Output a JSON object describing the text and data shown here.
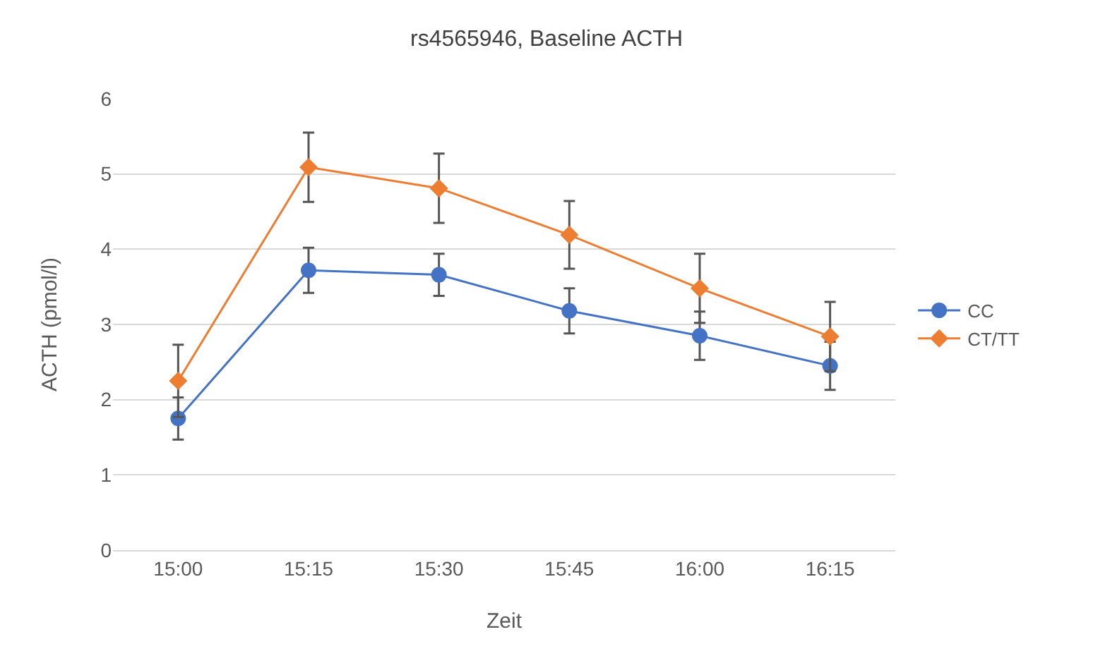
{
  "chart_data": {
    "type": "line",
    "title": "rs4565946, Baseline ACTH",
    "xlabel": "Zeit",
    "ylabel": "ACTH (pmol/l)",
    "categories": [
      "15:00",
      "15:15",
      "15:30",
      "15:45",
      "16:00",
      "16:15"
    ],
    "series": [
      {
        "name": "CC",
        "color": "#4472c4",
        "marker": "circle",
        "values": [
          1.75,
          3.72,
          3.66,
          3.18,
          2.85,
          2.45
        ],
        "errors": [
          0.28,
          0.3,
          0.28,
          0.3,
          0.32,
          0.32
        ]
      },
      {
        "name": "CT/TT",
        "color": "#ed7d31",
        "marker": "diamond",
        "values": [
          2.25,
          5.09,
          4.81,
          4.19,
          3.48,
          2.84
        ],
        "errors": [
          0.48,
          0.46,
          0.46,
          0.45,
          0.46,
          0.46
        ]
      }
    ],
    "ylim": [
      0,
      6
    ],
    "yticks": [
      0,
      1,
      2,
      3,
      4,
      5,
      6
    ],
    "grid": "y",
    "legend": "right",
    "line_style": "solid"
  }
}
